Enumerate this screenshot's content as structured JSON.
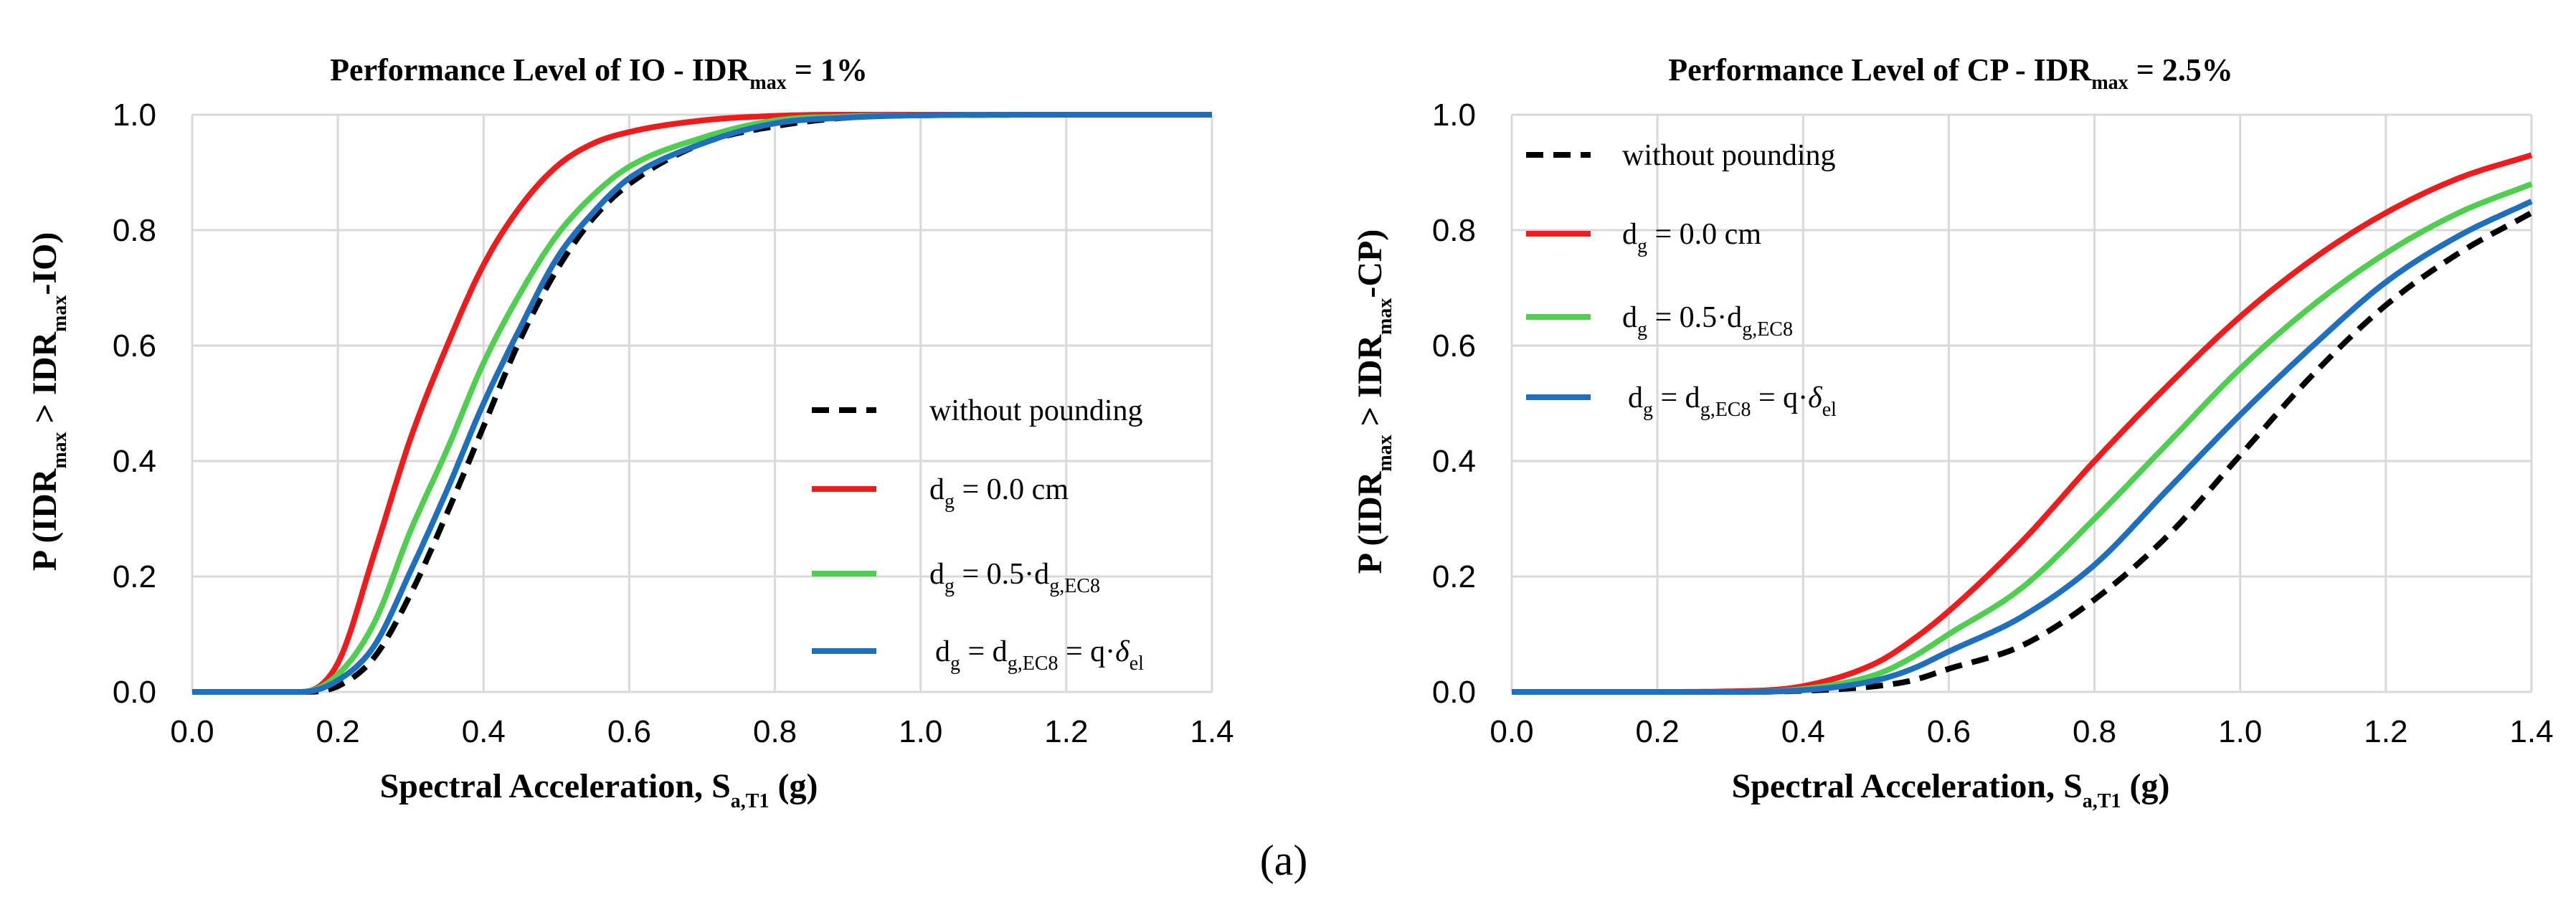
{
  "caption": "(a)",
  "legend": {
    "without": "without pounding",
    "d0_prefix": "d",
    "d0_sub": "g",
    "d0_rest": " = 0.0 cm",
    "d05_prefix": "d",
    "d05_sub": "g",
    "d05_mid": " = 0.5·d",
    "d05_sub2": "g,EC8",
    "dfull_prefix": "d",
    "dfull_sub": "g",
    "dfull_mid": " = d",
    "dfull_sub2": "g,EC8",
    "dfull_mid2": " = q·",
    "dfull_delta": "δ",
    "dfull_sub3": "el"
  },
  "colors": {
    "without": "#000000",
    "d0": "#ee1c1c",
    "d05": "#4fce4f",
    "dfull": "#1f6fbf"
  },
  "chart_data": [
    {
      "type": "line",
      "title_main": "Performance Level of IO - IDR",
      "title_sub": "max",
      "title_tail": " = 1%",
      "xlabel_main": "Spectral Acceleration, S",
      "xlabel_sub": "a,T1",
      "xlabel_tail": " (g)",
      "ylabel_p1": "P (IDR",
      "ylabel_s1": "max",
      "ylabel_p2": " > IDR",
      "ylabel_s2": "max",
      "ylabel_p3": "-IO)",
      "xlim": [
        0,
        1.4
      ],
      "ylim": [
        0,
        1
      ],
      "x_ticks": [
        "0.0",
        "0.2",
        "0.4",
        "0.6",
        "0.8",
        "1.0",
        "1.2",
        "1.4"
      ],
      "y_ticks": [
        "0.0",
        "0.2",
        "0.4",
        "0.6",
        "0.8",
        "1.0"
      ],
      "legend_position": "bottom-right",
      "x": [
        0.0,
        0.1,
        0.15,
        0.2,
        0.25,
        0.3,
        0.35,
        0.4,
        0.45,
        0.5,
        0.55,
        0.6,
        0.7,
        0.8,
        0.9,
        1.0,
        1.2,
        1.4
      ],
      "series": [
        {
          "name": "without pounding",
          "key": "without",
          "values": [
            0.0,
            0.0,
            0.0,
            0.01,
            0.06,
            0.17,
            0.31,
            0.46,
            0.61,
            0.73,
            0.82,
            0.88,
            0.95,
            0.98,
            0.995,
            0.999,
            1.0,
            1.0
          ]
        },
        {
          "name": "dg = 0.0 cm",
          "key": "d0",
          "values": [
            0.0,
            0.0,
            0.0,
            0.05,
            0.24,
            0.44,
            0.6,
            0.74,
            0.84,
            0.91,
            0.95,
            0.97,
            0.99,
            0.998,
            1.0,
            1.0,
            1.0,
            1.0
          ]
        },
        {
          "name": "dg = 0.5·dg,EC8",
          "key": "d05",
          "values": [
            0.0,
            0.0,
            0.0,
            0.03,
            0.12,
            0.28,
            0.42,
            0.57,
            0.69,
            0.79,
            0.86,
            0.91,
            0.96,
            0.99,
            0.997,
            0.999,
            1.0,
            1.0
          ]
        },
        {
          "name": "dg = dg,EC8 = q·δel",
          "key": "dfull",
          "values": [
            0.0,
            0.0,
            0.0,
            0.02,
            0.08,
            0.21,
            0.35,
            0.5,
            0.63,
            0.75,
            0.83,
            0.89,
            0.95,
            0.985,
            0.995,
            0.999,
            1.0,
            1.0
          ]
        }
      ]
    },
    {
      "type": "line",
      "title_main": "Performance Level of CP - IDR",
      "title_sub": "max",
      "title_tail": " = 2.5%",
      "xlabel_main": "Spectral Acceleration, S",
      "xlabel_sub": "a,T1",
      "xlabel_tail": " (g)",
      "ylabel_p1": "P (IDR",
      "ylabel_s1": "max",
      "ylabel_p2": " > IDR",
      "ylabel_s2": "max",
      "ylabel_p3": "-CP)",
      "xlim": [
        0,
        1.4
      ],
      "ylim": [
        0,
        1
      ],
      "x_ticks": [
        "0.0",
        "0.2",
        "0.4",
        "0.6",
        "0.8",
        "1.0",
        "1.2",
        "1.4"
      ],
      "y_ticks": [
        "0.0",
        "0.2",
        "0.4",
        "0.6",
        "0.8",
        "1.0"
      ],
      "legend_position": "top-left",
      "x": [
        0.0,
        0.2,
        0.3,
        0.4,
        0.5,
        0.55,
        0.6,
        0.7,
        0.8,
        0.9,
        1.0,
        1.1,
        1.2,
        1.3,
        1.4
      ],
      "series": [
        {
          "name": "without pounding",
          "key": "without",
          "values": [
            0.0,
            0.0,
            0.0,
            0.002,
            0.01,
            0.02,
            0.04,
            0.08,
            0.16,
            0.27,
            0.41,
            0.55,
            0.67,
            0.76,
            0.83
          ]
        },
        {
          "name": "dg = 0.0 cm",
          "key": "d0",
          "values": [
            0.0,
            0.0,
            0.001,
            0.01,
            0.05,
            0.09,
            0.14,
            0.26,
            0.4,
            0.53,
            0.65,
            0.75,
            0.83,
            0.89,
            0.93
          ]
        },
        {
          "name": "dg = 0.5·dg,EC8",
          "key": "d05",
          "values": [
            0.0,
            0.0,
            0.0,
            0.005,
            0.03,
            0.06,
            0.1,
            0.18,
            0.3,
            0.43,
            0.56,
            0.67,
            0.76,
            0.83,
            0.88
          ]
        },
        {
          "name": "dg = dg,EC8 = q·δel",
          "key": "dfull",
          "values": [
            0.0,
            0.0,
            0.0,
            0.003,
            0.02,
            0.04,
            0.07,
            0.13,
            0.22,
            0.35,
            0.48,
            0.6,
            0.71,
            0.79,
            0.85
          ]
        }
      ]
    }
  ]
}
